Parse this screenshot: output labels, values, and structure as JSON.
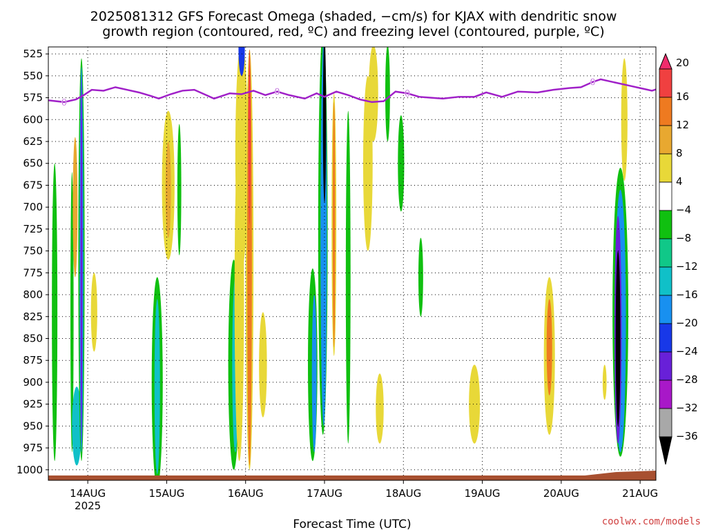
{
  "chart_data": {
    "type": "heatmap",
    "title_line1": "2025081312 GFS Forecast Omega (shaded, −cm/s) for KJAX with dendritic snow",
    "title_line2": "growth region (contoured, red, ºC) and freezing level (contoured, purple, ºC)",
    "xlabel": "Forecast Time (UTC)",
    "credit": "coolwx.com/models",
    "x_ticks": [
      {
        "date": "14AUG",
        "year": "2025",
        "pos": 0.5
      },
      {
        "date": "15AUG",
        "year": "",
        "pos": 1.5
      },
      {
        "date": "16AUG",
        "year": "",
        "pos": 2.5
      },
      {
        "date": "17AUG",
        "year": "",
        "pos": 3.5
      },
      {
        "date": "18AUG",
        "year": "",
        "pos": 4.5
      },
      {
        "date": "19AUG",
        "year": "",
        "pos": 5.5
      },
      {
        "date": "20AUG",
        "year": "",
        "pos": 6.5
      },
      {
        "date": "21AUG",
        "year": "",
        "pos": 7.5
      }
    ],
    "y_ticks": [
      525,
      550,
      575,
      600,
      625,
      650,
      675,
      700,
      725,
      750,
      775,
      800,
      825,
      850,
      875,
      900,
      925,
      950,
      975,
      1000
    ],
    "y_range": [
      517,
      1012
    ],
    "colorbar_labels": [
      "20",
      "16",
      "12",
      "8",
      "4",
      "−4",
      "−8",
      "−12",
      "−16",
      "−20",
      "−24",
      "−28",
      "−32",
      "−36"
    ],
    "colorbar_colors": [
      "#f02c6c",
      "#f04040",
      "#ee7a20",
      "#e8a830",
      "#e8d838",
      "#ffffff",
      "#10c010",
      "#10c888",
      "#10c0c8",
      "#1890f0",
      "#1838e8",
      "#6820d8",
      "#a818c8",
      "#a8a8a8"
    ],
    "freezing_level_color": "#a020c8",
    "freezing_level_label": "0",
    "freezing_level": [
      [
        0.0,
        578
      ],
      [
        0.2,
        580
      ],
      [
        0.35,
        577
      ],
      [
        0.45,
        572
      ],
      [
        0.55,
        566
      ],
      [
        0.7,
        567
      ],
      [
        0.85,
        563
      ],
      [
        1.0,
        566
      ],
      [
        1.15,
        569
      ],
      [
        1.3,
        573
      ],
      [
        1.4,
        576
      ],
      [
        1.55,
        571
      ],
      [
        1.7,
        567
      ],
      [
        1.85,
        566
      ],
      [
        2.0,
        572
      ],
      [
        2.1,
        576
      ],
      [
        2.2,
        573
      ],
      [
        2.3,
        570
      ],
      [
        2.45,
        571
      ],
      [
        2.6,
        567
      ],
      [
        2.75,
        572
      ],
      [
        2.9,
        568
      ],
      [
        3.05,
        572
      ],
      [
        3.25,
        576
      ],
      [
        3.4,
        570
      ],
      [
        3.5,
        574
      ],
      [
        3.65,
        568
      ],
      [
        3.8,
        572
      ],
      [
        3.95,
        577
      ],
      [
        4.1,
        580
      ],
      [
        4.25,
        579
      ],
      [
        4.4,
        568
      ],
      [
        4.55,
        570
      ],
      [
        4.7,
        574
      ],
      [
        4.85,
        575
      ],
      [
        5.0,
        576
      ],
      [
        5.2,
        574
      ],
      [
        5.4,
        574
      ],
      [
        5.55,
        569
      ],
      [
        5.75,
        574
      ],
      [
        5.95,
        568
      ],
      [
        6.2,
        569
      ],
      [
        6.4,
        566
      ],
      [
        6.6,
        564
      ],
      [
        6.75,
        563
      ],
      [
        6.9,
        557
      ],
      [
        7.0,
        554
      ],
      [
        7.2,
        558
      ],
      [
        7.4,
        562
      ],
      [
        7.55,
        565
      ],
      [
        7.65,
        567
      ],
      [
        7.75,
        564
      ]
    ],
    "omega_blobs": [
      {
        "x": 0.08,
        "p": 820,
        "w": 0.035,
        "h": 340,
        "color": "#10c010"
      },
      {
        "x": 0.3,
        "p": 820,
        "w": 0.02,
        "h": 320,
        "color": "#10c010"
      },
      {
        "x": 0.36,
        "p": 950,
        "w": 0.06,
        "h": 90,
        "color": "#10c0c8"
      },
      {
        "x": 0.34,
        "p": 700,
        "w": 0.03,
        "h": 160,
        "color": "#e8a830"
      },
      {
        "x": 0.42,
        "p": 760,
        "w": 0.04,
        "h": 460,
        "color": "#10c010"
      },
      {
        "x": 0.42,
        "p": 760,
        "w": 0.025,
        "h": 440,
        "color": "#1890f0"
      },
      {
        "x": 0.42,
        "p": 760,
        "w": 0.012,
        "h": 420,
        "color": "#6820d8"
      },
      {
        "x": 0.58,
        "p": 820,
        "w": 0.04,
        "h": 90,
        "color": "#e8d838"
      },
      {
        "x": 1.38,
        "p": 900,
        "w": 0.07,
        "h": 240,
        "color": "#10c010"
      },
      {
        "x": 1.38,
        "p": 905,
        "w": 0.035,
        "h": 200,
        "color": "#10c0c8"
      },
      {
        "x": 1.52,
        "p": 675,
        "w": 0.08,
        "h": 170,
        "color": "#e8d838"
      },
      {
        "x": 1.52,
        "p": 680,
        "w": 0.035,
        "h": 110,
        "color": "#e8a830"
      },
      {
        "x": 1.66,
        "p": 680,
        "w": 0.025,
        "h": 150,
        "color": "#10c010"
      },
      {
        "x": 2.35,
        "p": 880,
        "w": 0.07,
        "h": 240,
        "color": "#10c010"
      },
      {
        "x": 2.37,
        "p": 880,
        "w": 0.04,
        "h": 200,
        "color": "#10c0c8"
      },
      {
        "x": 2.42,
        "p": 800,
        "w": 0.06,
        "h": 380,
        "color": "#e8d838"
      },
      {
        "x": 2.45,
        "p": 640,
        "w": 0.08,
        "h": 260,
        "color": "#e8d838"
      },
      {
        "x": 2.55,
        "p": 760,
        "w": 0.05,
        "h": 480,
        "color": "#e8d838"
      },
      {
        "x": 2.55,
        "p": 760,
        "w": 0.03,
        "h": 470,
        "color": "#ee7a20"
      },
      {
        "x": 2.55,
        "p": 620,
        "w": 0.015,
        "h": 200,
        "color": "#f04040"
      },
      {
        "x": 2.45,
        "p": 520,
        "w": 0.04,
        "h": 60,
        "color": "#1838e8"
      },
      {
        "x": 2.72,
        "p": 880,
        "w": 0.05,
        "h": 120,
        "color": "#e8d838"
      },
      {
        "x": 3.35,
        "p": 880,
        "w": 0.06,
        "h": 220,
        "color": "#10c010"
      },
      {
        "x": 3.37,
        "p": 890,
        "w": 0.03,
        "h": 180,
        "color": "#1890f0"
      },
      {
        "x": 3.48,
        "p": 730,
        "w": 0.06,
        "h": 460,
        "color": "#10c010"
      },
      {
        "x": 3.49,
        "p": 730,
        "w": 0.04,
        "h": 440,
        "color": "#1890f0"
      },
      {
        "x": 3.5,
        "p": 600,
        "w": 0.02,
        "h": 190,
        "color": "#000000"
      },
      {
        "x": 3.62,
        "p": 720,
        "w": 0.03,
        "h": 300,
        "color": "#e8d838"
      },
      {
        "x": 3.62,
        "p": 720,
        "w": 0.015,
        "h": 280,
        "color": "#ee7a20"
      },
      {
        "x": 3.8,
        "p": 780,
        "w": 0.03,
        "h": 380,
        "color": "#10c010"
      },
      {
        "x": 4.05,
        "p": 650,
        "w": 0.06,
        "h": 200,
        "color": "#e8d838"
      },
      {
        "x": 4.12,
        "p": 570,
        "w": 0.06,
        "h": 110,
        "color": "#e8d838"
      },
      {
        "x": 4.2,
        "p": 930,
        "w": 0.05,
        "h": 80,
        "color": "#e8d838"
      },
      {
        "x": 4.3,
        "p": 570,
        "w": 0.03,
        "h": 110,
        "color": "#10c010"
      },
      {
        "x": 4.47,
        "p": 650,
        "w": 0.04,
        "h": 110,
        "color": "#10c010"
      },
      {
        "x": 4.72,
        "p": 780,
        "w": 0.03,
        "h": 90,
        "color": "#10c010"
      },
      {
        "x": 5.4,
        "p": 925,
        "w": 0.07,
        "h": 90,
        "color": "#e8d838"
      },
      {
        "x": 6.35,
        "p": 870,
        "w": 0.07,
        "h": 180,
        "color": "#e8d838"
      },
      {
        "x": 6.35,
        "p": 860,
        "w": 0.035,
        "h": 110,
        "color": "#ee7a20"
      },
      {
        "x": 7.05,
        "p": 900,
        "w": 0.025,
        "h": 40,
        "color": "#e8d838"
      },
      {
        "x": 7.25,
        "p": 820,
        "w": 0.1,
        "h": 330,
        "color": "#10c010"
      },
      {
        "x": 7.25,
        "p": 830,
        "w": 0.07,
        "h": 300,
        "color": "#1890f0"
      },
      {
        "x": 7.22,
        "p": 840,
        "w": 0.045,
        "h": 260,
        "color": "#6820d8"
      },
      {
        "x": 7.22,
        "p": 850,
        "w": 0.03,
        "h": 200,
        "color": "#000000"
      },
      {
        "x": 7.3,
        "p": 600,
        "w": 0.04,
        "h": 140,
        "color": "#e8d838"
      }
    ],
    "terrain_color": "#a85030"
  }
}
